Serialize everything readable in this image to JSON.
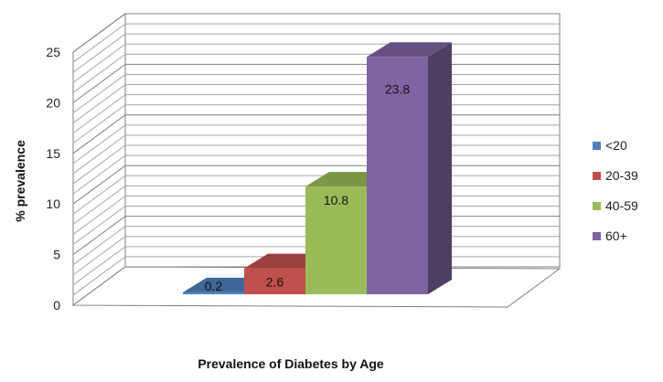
{
  "chart_data": {
    "type": "bar",
    "style": "3d-column",
    "xlabel": "Prevalence of Diabetes by Age",
    "ylabel": "% prevalence",
    "ylim": [
      0,
      25
    ],
    "yticks": [
      "0",
      "5",
      "10",
      "15",
      "20",
      "25"
    ],
    "grid": true,
    "legend": "right",
    "series": [
      {
        "name": "<20",
        "value": 0.2,
        "label": "0.2",
        "color": "#4F81BD"
      },
      {
        "name": "20-39",
        "value": 2.6,
        "label": "2.6",
        "color": "#C0504D"
      },
      {
        "name": "40-59",
        "value": 10.8,
        "label": "10.8",
        "color": "#9BBB59"
      },
      {
        "name": "60+",
        "value": 23.8,
        "label": "23.8",
        "color": "#8064A2"
      }
    ]
  }
}
